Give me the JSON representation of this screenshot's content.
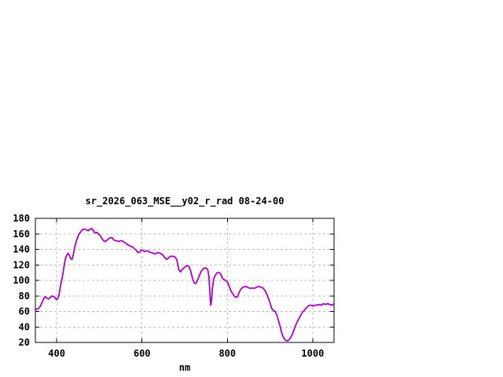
{
  "chart_data": {
    "type": "line",
    "title": "sr_2026_063_MSE__y02_r_rad 08-24-00",
    "xlabel": "nm",
    "ylabel": "",
    "xlim": [
      350,
      1050
    ],
    "ylim": [
      20,
      180
    ],
    "x_ticks": [
      400,
      600,
      800,
      1000
    ],
    "y_ticks": [
      20,
      40,
      60,
      80,
      100,
      120,
      140,
      160,
      180
    ],
    "grid": true,
    "legend": false,
    "line_color": "#AA00CC",
    "grid_color": "#BBBBBB",
    "frame_color": "#000000",
    "text_color": "#000000",
    "series": [
      {
        "x": [
          350,
          354,
          358,
          362,
          366,
          370,
          373,
          377,
          381,
          385,
          389,
          393,
          397,
          400,
          403,
          406,
          409,
          412,
          415,
          418,
          421,
          424,
          427,
          430,
          433,
          436,
          439,
          442,
          445,
          448,
          451,
          454,
          458,
          462,
          466,
          470,
          474,
          478,
          482,
          486,
          490,
          494,
          498,
          502,
          506,
          510,
          514,
          518,
          522,
          526,
          530,
          534,
          538,
          542,
          546,
          550,
          554,
          558,
          562,
          566,
          570,
          574,
          578,
          582,
          586,
          590,
          594,
          598,
          602,
          606,
          610,
          614,
          618,
          622,
          626,
          630,
          634,
          638,
          642,
          646,
          650,
          654,
          658,
          662,
          666,
          670,
          674,
          678,
          682,
          686,
          690,
          694,
          698,
          702,
          706,
          710,
          714,
          718,
          722,
          726,
          730,
          734,
          738,
          742,
          746,
          750,
          754,
          757,
          759,
          761,
          763,
          765,
          768,
          772,
          776,
          780,
          784,
          788,
          792,
          796,
          800,
          804,
          808,
          812,
          816,
          820,
          824,
          828,
          832,
          836,
          840,
          844,
          848,
          852,
          856,
          860,
          864,
          868,
          872,
          876,
          880,
          884,
          888,
          892,
          896,
          900,
          904,
          908,
          912,
          916,
          920,
          924,
          928,
          932,
          936,
          940,
          944,
          948,
          952,
          956,
          960,
          964,
          968,
          972,
          976,
          980,
          984,
          988,
          992,
          996,
          1000,
          1005,
          1010,
          1015,
          1020,
          1025,
          1030,
          1035,
          1040,
          1045,
          1050
        ],
        "y": [
          62,
          63,
          64,
          67,
          72,
          77,
          79,
          77,
          76,
          78,
          80,
          79,
          77,
          75,
          77,
          83,
          93,
          101,
          110,
          121,
          129,
          133,
          135,
          132,
          128,
          127,
          133,
          142,
          149,
          154,
          158,
          161,
          164,
          166,
          166,
          165,
          164,
          166,
          167,
          164,
          161,
          162,
          160,
          158,
          154,
          151,
          150,
          152,
          154,
          155,
          155,
          152,
          151,
          151,
          150,
          151,
          151,
          149,
          148,
          146,
          145,
          144,
          143,
          141,
          139,
          136,
          136,
          139,
          139,
          137,
          138,
          138,
          136,
          136,
          135,
          134,
          135,
          136,
          135,
          134,
          132,
          129,
          127,
          129,
          131,
          131,
          131,
          130,
          126,
          114,
          111,
          114,
          116,
          118,
          119,
          118,
          112,
          103,
          97,
          96,
          100,
          106,
          111,
          114,
          116,
          116,
          114,
          105,
          85,
          68,
          74,
          90,
          102,
          107,
          110,
          110,
          109,
          103,
          101,
          100,
          98,
          93,
          87,
          83,
          80,
          78,
          79,
          85,
          89,
          91,
          92,
          92,
          91,
          90,
          90,
          90,
          90,
          91,
          92,
          92,
          91,
          90,
          87,
          83,
          77,
          71,
          64,
          61,
          60,
          55,
          48,
          40,
          31,
          26,
          23,
          22,
          23,
          26,
          30,
          36,
          42,
          47,
          51,
          55,
          59,
          61,
          64,
          66,
          68,
          68,
          67,
          68,
          68,
          69,
          68,
          70,
          69,
          70,
          69,
          68,
          70
        ]
      }
    ]
  }
}
